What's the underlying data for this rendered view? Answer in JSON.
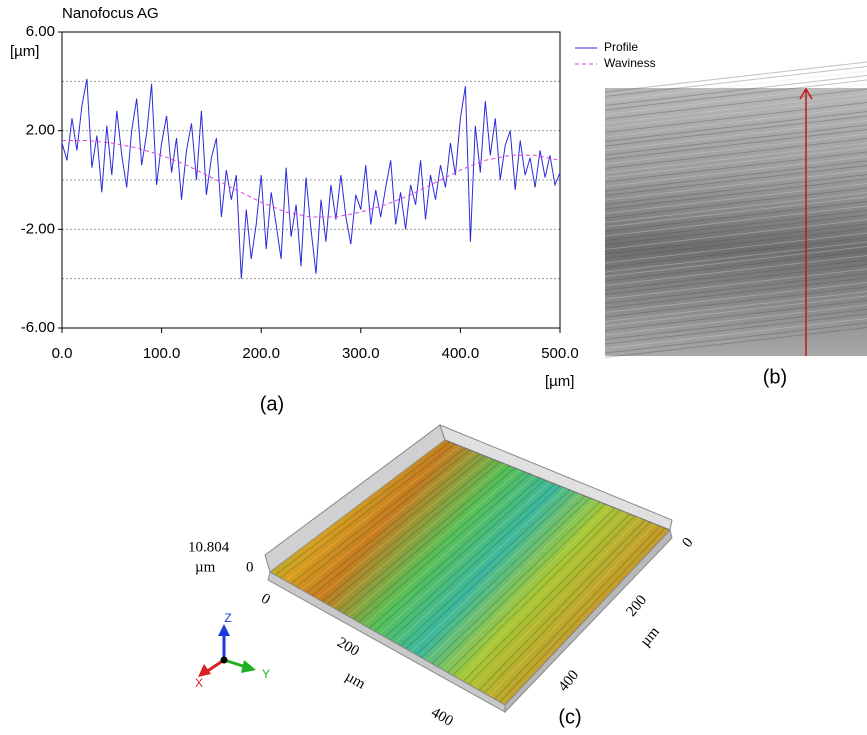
{
  "chart_data": {
    "type": "line",
    "title": "Nanofocus AG",
    "y_label": "[µm]",
    "x_label": "[µm]",
    "caption": "(a)",
    "xlim": [
      0,
      500
    ],
    "ylim": [
      -6,
      6
    ],
    "xticks": [
      {
        "value": 0,
        "label": "0.0"
      },
      {
        "value": 100,
        "label": "100.0"
      },
      {
        "value": 200,
        "label": "200.0"
      },
      {
        "value": 300,
        "label": "300.0"
      },
      {
        "value": 400,
        "label": "400.0"
      },
      {
        "value": 500,
        "label": "500.0"
      }
    ],
    "yticks": [
      {
        "value": 6,
        "label": "6.00"
      },
      {
        "value": 2,
        "label": "2.00"
      },
      {
        "value": -2,
        "label": "-2.00"
      },
      {
        "value": -6,
        "label": "-6.00"
      }
    ],
    "minor_yticks": [
      4,
      0,
      -4
    ],
    "grid": true,
    "series": [
      {
        "name": "Profile",
        "color": "#2b2bdc",
        "dash": false,
        "x": [
          0,
          5,
          10,
          15,
          20,
          25,
          30,
          35,
          40,
          45,
          50,
          55,
          60,
          65,
          70,
          75,
          80,
          85,
          90,
          95,
          100,
          105,
          110,
          115,
          120,
          125,
          130,
          135,
          140,
          145,
          150,
          155,
          160,
          165,
          170,
          175,
          180,
          185,
          190,
          195,
          200,
          205,
          210,
          215,
          220,
          225,
          230,
          235,
          240,
          245,
          250,
          255,
          260,
          265,
          270,
          275,
          280,
          285,
          290,
          295,
          300,
          305,
          310,
          315,
          320,
          325,
          330,
          335,
          340,
          345,
          350,
          355,
          360,
          365,
          370,
          375,
          380,
          385,
          390,
          395,
          400,
          405,
          410,
          415,
          420,
          425,
          430,
          435,
          440,
          445,
          450,
          455,
          460,
          465,
          470,
          475,
          480,
          485,
          490,
          495,
          500
        ],
        "values": [
          1.5,
          0.8,
          2.5,
          1.2,
          3.0,
          4.1,
          0.5,
          1.8,
          -0.5,
          2.2,
          0.2,
          2.8,
          1.0,
          -0.3,
          2.0,
          3.3,
          0.6,
          1.9,
          3.9,
          -0.2,
          1.5,
          2.6,
          0.3,
          1.7,
          -0.8,
          1.2,
          2.3,
          0.0,
          2.8,
          -0.6,
          0.9,
          1.7,
          -1.5,
          0.4,
          -0.8,
          0.2,
          -4.0,
          -1.2,
          -3.2,
          -1.8,
          0.2,
          -2.8,
          -0.5,
          -1.8,
          -3.2,
          0.5,
          -2.3,
          -1.0,
          -3.5,
          0.1,
          -2.0,
          -3.8,
          -0.8,
          -2.5,
          -0.2,
          -1.6,
          0.2,
          -1.5,
          -2.6,
          -0.6,
          -1.2,
          0.6,
          -1.8,
          -0.4,
          -1.5,
          -0.3,
          0.8,
          -1.8,
          -0.5,
          -2.0,
          -0.2,
          -1.0,
          0.8,
          -1.6,
          0.2,
          -0.8,
          0.6,
          -0.3,
          1.5,
          0.2,
          2.5,
          3.8,
          -2.5,
          2.2,
          0.3,
          3.2,
          1.0,
          2.5,
          0.0,
          1.4,
          2.0,
          -0.4,
          1.6,
          0.2,
          0.9,
          -0.3,
          1.2,
          0.1,
          1.0,
          -0.2,
          0.3
        ]
      },
      {
        "name": "Waviness",
        "color": "#e040e0",
        "dash": true,
        "x": [
          0,
          25,
          50,
          75,
          100,
          125,
          150,
          175,
          200,
          225,
          250,
          275,
          300,
          325,
          350,
          375,
          400,
          425,
          450,
          475,
          500
        ],
        "values": [
          1.6,
          1.6,
          1.5,
          1.3,
          1.0,
          0.6,
          0.1,
          -0.4,
          -0.9,
          -1.3,
          -1.5,
          -1.5,
          -1.3,
          -1.0,
          -0.6,
          -0.1,
          0.4,
          0.8,
          1.0,
          1.0,
          0.8
        ]
      }
    ]
  },
  "panel_b": {
    "caption": "(b)"
  },
  "panel_c": {
    "caption": "(c)",
    "z_max": "10.804",
    "z_unit": "µm",
    "z_zero": "0",
    "x_ticks": [
      "0",
      "200",
      "400"
    ],
    "x_unit": "µm",
    "y_ticks": [
      "0",
      "200",
      "400"
    ],
    "y_unit": "µm",
    "triad": {
      "z": "Z",
      "x": "X",
      "y": "Y"
    }
  }
}
